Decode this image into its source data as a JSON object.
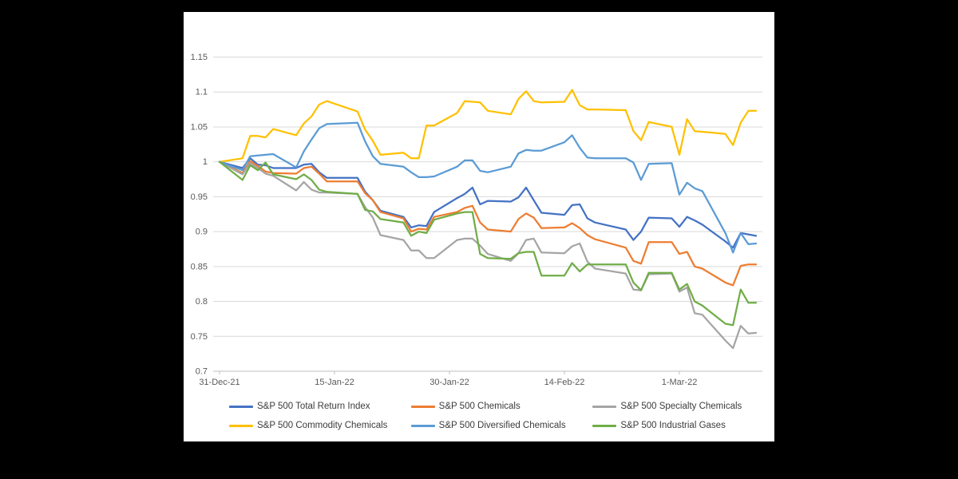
{
  "chart_data": {
    "type": "line",
    "title": "",
    "xlabel": "",
    "ylabel": "",
    "ylim": [
      0.7,
      1.15
    ],
    "grid": "horizontal",
    "legend_position": "bottom",
    "y_tick_labels": [
      "1.15",
      "1.1",
      "1.05",
      "1",
      "0.95",
      "0.9",
      "0.85",
      "0.8",
      "0.75",
      "0.7"
    ],
    "y_tick_values": [
      1.15,
      1.1,
      1.05,
      1.0,
      0.95,
      0.9,
      0.85,
      0.8,
      0.75,
      0.7
    ],
    "x_tick_labels": [
      "31-Dec-21",
      "15-Jan-22",
      "30-Jan-22",
      "14-Feb-22",
      "1-Mar-22"
    ],
    "x_tick_day_offsets": [
      0,
      15,
      30,
      45,
      60
    ],
    "x_axis_span_days": 71,
    "dates": [
      "31-Dec-21",
      "3-Jan-22",
      "4-Jan-22",
      "5-Jan-22",
      "6-Jan-22",
      "7-Jan-22",
      "10-Jan-22",
      "11-Jan-22",
      "12-Jan-22",
      "13-Jan-22",
      "14-Jan-22",
      "18-Jan-22",
      "19-Jan-22",
      "20-Jan-22",
      "21-Jan-22",
      "24-Jan-22",
      "25-Jan-22",
      "26-Jan-22",
      "27-Jan-22",
      "28-Jan-22",
      "31-Jan-22",
      "1-Feb-22",
      "2-Feb-22",
      "3-Feb-22",
      "4-Feb-22",
      "7-Feb-22",
      "8-Feb-22",
      "9-Feb-22",
      "10-Feb-22",
      "11-Feb-22",
      "14-Feb-22",
      "15-Feb-22",
      "16-Feb-22",
      "17-Feb-22",
      "18-Feb-22",
      "22-Feb-22",
      "23-Feb-22",
      "24-Feb-22",
      "25-Feb-22",
      "28-Feb-22",
      "1-Mar-22",
      "2-Mar-22",
      "3-Mar-22",
      "4-Mar-22",
      "7-Mar-22",
      "8-Mar-22",
      "9-Mar-22",
      "10-Mar-22",
      "11-Mar-22"
    ],
    "day_offsets": [
      0,
      3,
      4,
      5,
      6,
      7,
      10,
      11,
      12,
      13,
      14,
      18,
      19,
      20,
      21,
      24,
      25,
      26,
      27,
      28,
      31,
      32,
      33,
      34,
      35,
      38,
      39,
      40,
      41,
      42,
      45,
      46,
      47,
      48,
      49,
      53,
      54,
      55,
      56,
      59,
      60,
      61,
      62,
      63,
      66,
      67,
      68,
      69,
      70
    ],
    "series": [
      {
        "name": "S&P 500 Total Return Index",
        "color": "#4472C4",
        "values": [
          1.0,
          0.991,
          1.005,
          0.996,
          0.995,
          0.991,
          0.991,
          0.996,
          0.997,
          0.985,
          0.977,
          0.977,
          0.957,
          0.945,
          0.93,
          0.921,
          0.906,
          0.909,
          0.908,
          0.928,
          0.948,
          0.954,
          0.963,
          0.939,
          0.944,
          0.943,
          0.949,
          0.963,
          0.945,
          0.927,
          0.924,
          0.938,
          0.939,
          0.919,
          0.913,
          0.903,
          0.888,
          0.9,
          0.92,
          0.919,
          0.907,
          0.921,
          0.916,
          0.91,
          0.886,
          0.877,
          0.898,
          0.896,
          0.894
        ]
      },
      {
        "name": "S&P 500 Chemicals",
        "color": "#ED7D31",
        "values": [
          1.0,
          0.984,
          1.001,
          0.994,
          0.986,
          0.984,
          0.983,
          0.991,
          0.993,
          0.983,
          0.972,
          0.972,
          0.955,
          0.945,
          0.928,
          0.919,
          0.9,
          0.904,
          0.903,
          0.921,
          0.928,
          0.934,
          0.937,
          0.913,
          0.903,
          0.9,
          0.918,
          0.926,
          0.92,
          0.905,
          0.906,
          0.912,
          0.905,
          0.895,
          0.889,
          0.877,
          0.858,
          0.854,
          0.885,
          0.885,
          0.868,
          0.871,
          0.85,
          0.847,
          0.827,
          0.823,
          0.851,
          0.853,
          0.853
        ]
      },
      {
        "name": "S&P 500 Specialty Chemicals",
        "color": "#A5A5A5",
        "values": [
          1.0,
          0.982,
          0.998,
          0.991,
          0.983,
          0.98,
          0.959,
          0.971,
          0.96,
          0.956,
          0.956,
          0.954,
          0.935,
          0.92,
          0.895,
          0.888,
          0.873,
          0.873,
          0.862,
          0.862,
          0.888,
          0.89,
          0.89,
          0.88,
          0.868,
          0.858,
          0.869,
          0.888,
          0.89,
          0.87,
          0.869,
          0.879,
          0.883,
          0.857,
          0.847,
          0.84,
          0.817,
          0.816,
          0.839,
          0.84,
          0.814,
          0.82,
          0.783,
          0.781,
          0.744,
          0.733,
          0.765,
          0.754,
          0.755
        ]
      },
      {
        "name": "S&P 500 Commodity Chemicals",
        "color": "#FFC000",
        "values": [
          1.0,
          1.005,
          1.037,
          1.037,
          1.035,
          1.047,
          1.038,
          1.055,
          1.065,
          1.082,
          1.087,
          1.072,
          1.046,
          1.03,
          1.01,
          1.013,
          1.005,
          1.005,
          1.052,
          1.052,
          1.07,
          1.087,
          1.086,
          1.085,
          1.073,
          1.068,
          1.09,
          1.101,
          1.087,
          1.085,
          1.086,
          1.103,
          1.081,
          1.075,
          1.075,
          1.074,
          1.044,
          1.031,
          1.057,
          1.05,
          1.01,
          1.061,
          1.044,
          1.043,
          1.04,
          1.024,
          1.056,
          1.073,
          1.073
        ]
      },
      {
        "name": "S&P 500 Diversified Chemicals",
        "color": "#5B9BD5",
        "values": [
          1.0,
          0.988,
          1.008,
          1.009,
          1.01,
          1.011,
          0.992,
          1.015,
          1.032,
          1.048,
          1.054,
          1.056,
          1.029,
          1.008,
          0.997,
          0.993,
          0.985,
          0.978,
          0.978,
          0.979,
          0.993,
          1.002,
          1.002,
          0.987,
          0.985,
          0.993,
          1.012,
          1.017,
          1.016,
          1.016,
          1.028,
          1.038,
          1.02,
          1.006,
          1.005,
          1.005,
          0.999,
          0.974,
          0.997,
          0.998,
          0.953,
          0.97,
          0.962,
          0.958,
          0.898,
          0.87,
          0.898,
          0.882,
          0.883
        ]
      },
      {
        "name": "S&P 500 Industrial Gases",
        "color": "#70AD47",
        "values": [
          1.0,
          0.974,
          0.995,
          0.988,
          0.999,
          0.982,
          0.975,
          0.982,
          0.974,
          0.96,
          0.957,
          0.954,
          0.931,
          0.929,
          0.918,
          0.913,
          0.894,
          0.9,
          0.898,
          0.917,
          0.926,
          0.928,
          0.928,
          0.868,
          0.862,
          0.861,
          0.869,
          0.871,
          0.871,
          0.837,
          0.837,
          0.855,
          0.843,
          0.853,
          0.853,
          0.853,
          0.827,
          0.816,
          0.841,
          0.841,
          0.817,
          0.825,
          0.8,
          0.794,
          0.768,
          0.766,
          0.817,
          0.798,
          0.798
        ]
      }
    ],
    "gridline_color": "#D9D9D9",
    "axis_line_color": "#BFBFBF",
    "axis_text_color": "#595959"
  }
}
